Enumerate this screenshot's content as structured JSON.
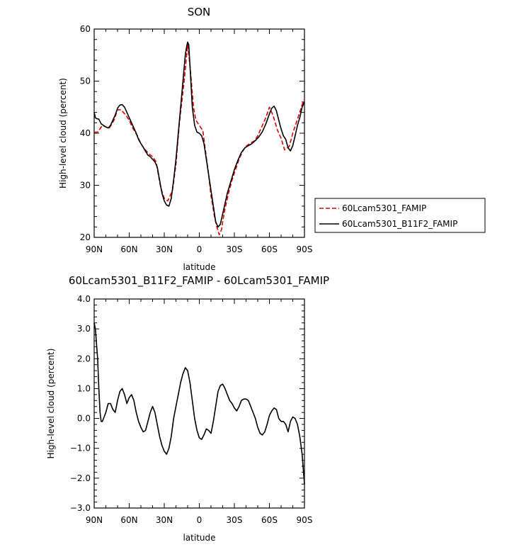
{
  "chart_data": [
    {
      "type": "line",
      "title": "SON",
      "xlabel": "latitude",
      "ylabel": "High-level cloud (percent)",
      "ylim": [
        20,
        60
      ],
      "yticks": [
        20,
        30,
        40,
        50,
        60
      ],
      "xlim": [
        90,
        -90
      ],
      "xticks": [
        90,
        60,
        30,
        0,
        -30,
        -60,
        -90
      ],
      "xticklabels": [
        "90N",
        "60N",
        "30N",
        "0",
        "30S",
        "60S",
        "90S"
      ],
      "legend": "right",
      "series": [
        {
          "name": "60Lcam5301_FAMIP",
          "color": "#e00000",
          "dash": "dashed",
          "x": [
            90,
            87,
            83,
            80,
            77,
            73,
            70,
            67,
            63,
            60,
            57,
            53,
            50,
            47,
            43,
            40,
            37,
            33,
            30,
            27,
            23,
            20,
            17,
            13,
            10,
            8,
            5,
            3,
            0,
            -3,
            -5,
            -8,
            -10,
            -13,
            -15,
            -17,
            -19,
            -20,
            -22,
            -25,
            -28,
            -31,
            -34,
            -37,
            -40,
            -43,
            -47,
            -50,
            -53,
            -57,
            -60,
            -63,
            -67,
            -70,
            -73,
            -77,
            -80,
            -83,
            -86,
            -88,
            -90
          ],
          "values": [
            40.2,
            40.2,
            41.5,
            41.2,
            41.0,
            42.5,
            44.5,
            44.5,
            43.5,
            42.5,
            41.0,
            39.5,
            38.0,
            37.0,
            36.0,
            35.5,
            34.5,
            29.5,
            27.5,
            27.0,
            29.0,
            34.0,
            42.0,
            50.0,
            57.0,
            53.0,
            45.0,
            42.5,
            41.5,
            40.5,
            37.0,
            32.0,
            28.0,
            24.0,
            22.0,
            20.5,
            21.5,
            23.0,
            25.5,
            28.5,
            31.0,
            33.0,
            35.0,
            36.5,
            37.5,
            38.0,
            38.5,
            39.5,
            41.0,
            43.0,
            45.0,
            43.5,
            40.5,
            39.0,
            36.8,
            37.5,
            40.0,
            42.0,
            44.0,
            45.5,
            46.5
          ]
        },
        {
          "name": "60Lcam5301_B11F2_FAMIP",
          "color": "#000000",
          "dash": "solid",
          "x": [
            90,
            89,
            88,
            86,
            84,
            82,
            80,
            78,
            76,
            74,
            72,
            70,
            68,
            66,
            64,
            62,
            60,
            58,
            56,
            54,
            52,
            50,
            48,
            46,
            44,
            42,
            40,
            38,
            36,
            34,
            32,
            30,
            28,
            26,
            24,
            22,
            20,
            18,
            16,
            14,
            12,
            11,
            10,
            9,
            8,
            6,
            4,
            2,
            0,
            -2,
            -4,
            -6,
            -8,
            -10,
            -12,
            -14,
            -16,
            -18,
            -20,
            -22,
            -24,
            -26,
            -28,
            -30,
            -33,
            -36,
            -39,
            -42,
            -45,
            -48,
            -51,
            -54,
            -57,
            -60,
            -62,
            -64,
            -66,
            -68,
            -70,
            -72,
            -74,
            -76,
            -78,
            -80,
            -82,
            -84,
            -86,
            -88,
            -90
          ],
          "values": [
            44.0,
            43.0,
            42.8,
            42.7,
            41.8,
            41.5,
            41.2,
            41.0,
            41.5,
            42.5,
            43.5,
            44.8,
            45.4,
            45.5,
            45.0,
            44.0,
            43.0,
            42.0,
            41.0,
            40.0,
            38.8,
            38.0,
            37.3,
            36.5,
            35.8,
            35.5,
            35.0,
            34.5,
            33.5,
            31.0,
            28.5,
            27.0,
            26.2,
            26.0,
            27.5,
            31.0,
            35.0,
            40.0,
            45.0,
            50.0,
            55.0,
            56.5,
            57.5,
            57.0,
            53.0,
            45.0,
            41.5,
            40.2,
            40.0,
            39.5,
            38.0,
            35.0,
            32.0,
            29.0,
            26.0,
            23.0,
            22.0,
            22.5,
            24.5,
            26.5,
            28.5,
            30.0,
            31.5,
            33.0,
            34.8,
            36.3,
            37.2,
            37.6,
            38.0,
            38.6,
            39.3,
            40.3,
            41.8,
            43.7,
            44.8,
            45.2,
            44.3,
            42.5,
            40.8,
            39.5,
            38.8,
            37.2,
            36.6,
            37.6,
            39.5,
            41.5,
            43.0,
            45.0,
            46.0
          ]
        }
      ]
    },
    {
      "type": "line",
      "title": "60Lcam5301_B11F2_FAMIP - 60Lcam5301_FAMIP",
      "xlabel": "latitude",
      "ylabel": "High-level cloud (percent)",
      "ylim": [
        -3.0,
        4.0
      ],
      "yticks": [
        -3.0,
        -2.0,
        -1.0,
        0.0,
        1.0,
        2.0,
        3.0,
        4.0
      ],
      "yticklabels": [
        "−3.0",
        "−2.0",
        "−1.0",
        "0.0",
        "1.0",
        "2.0",
        "3.0",
        "4.0"
      ],
      "xlim": [
        90,
        -90
      ],
      "xticks": [
        90,
        60,
        30,
        0,
        -30,
        -60,
        -90
      ],
      "xticklabels": [
        "90N",
        "60N",
        "30N",
        "0",
        "30S",
        "60S",
        "90S"
      ],
      "series": [
        {
          "color": "#000000",
          "dash": "solid",
          "x": [
            90,
            89,
            88,
            87,
            86,
            85,
            84,
            83,
            82,
            80,
            78,
            76,
            74,
            72,
            70,
            68,
            66,
            64,
            62,
            60,
            58,
            56,
            54,
            52,
            50,
            48,
            46,
            44,
            42,
            40,
            38,
            36,
            34,
            32,
            30,
            28,
            26,
            24,
            22,
            20,
            18,
            16,
            14,
            12,
            10,
            8,
            6,
            4,
            2,
            0,
            -2,
            -4,
            -6,
            -8,
            -10,
            -12,
            -14,
            -16,
            -18,
            -20,
            -22,
            -24,
            -26,
            -28,
            -30,
            -32,
            -34,
            -36,
            -38,
            -40,
            -42,
            -44,
            -46,
            -48,
            -50,
            -52,
            -54,
            -56,
            -58,
            -60,
            -62,
            -64,
            -66,
            -68,
            -70,
            -72,
            -74,
            -76,
            -78,
            -80,
            -82,
            -84,
            -86,
            -88,
            -90
          ],
          "values": [
            3.2,
            3.0,
            2.5,
            2.0,
            1.0,
            0.2,
            -0.1,
            -0.1,
            0.0,
            0.2,
            0.5,
            0.5,
            0.3,
            0.2,
            0.6,
            0.9,
            1.0,
            0.8,
            0.5,
            0.7,
            0.8,
            0.6,
            0.2,
            -0.1,
            -0.3,
            -0.45,
            -0.4,
            -0.1,
            0.2,
            0.4,
            0.2,
            -0.2,
            -0.6,
            -0.9,
            -1.1,
            -1.2,
            -1.0,
            -0.6,
            0.0,
            0.4,
            0.8,
            1.2,
            1.5,
            1.7,
            1.6,
            1.2,
            0.6,
            0.0,
            -0.4,
            -0.65,
            -0.7,
            -0.55,
            -0.35,
            -0.4,
            -0.5,
            -0.1,
            0.4,
            0.9,
            1.1,
            1.15,
            1.0,
            0.8,
            0.6,
            0.5,
            0.35,
            0.25,
            0.4,
            0.6,
            0.65,
            0.65,
            0.6,
            0.4,
            0.2,
            0.0,
            -0.3,
            -0.5,
            -0.55,
            -0.45,
            -0.2,
            0.1,
            0.25,
            0.35,
            0.3,
            0.0,
            -0.1,
            -0.1,
            -0.2,
            -0.45,
            -0.1,
            0.05,
            0.0,
            -0.2,
            -0.6,
            -1.2,
            -2.2
          ]
        }
      ]
    }
  ]
}
